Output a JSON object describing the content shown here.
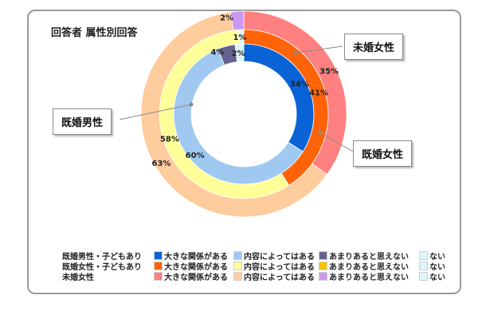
{
  "chart_data": {
    "type": "donut",
    "title": "回答者 属性別回答",
    "categories": [
      "大きな関係がある",
      "内容によってはある",
      "あまりあると思えない",
      "ない"
    ],
    "series": [
      {
        "name": "既婚男性・子どもあり",
        "values": [
          34,
          60,
          4,
          2
        ],
        "labels": [
          "34%",
          "60%",
          "4%",
          "2%"
        ],
        "colors": [
          "#0a63d6",
          "#9fc9f1",
          "#64628f",
          "#ddf7f8"
        ]
      },
      {
        "name": "既婚女性・子どもあり",
        "values": [
          41,
          58,
          0,
          1
        ],
        "labels": [
          "41%",
          "58%",
          "",
          "1%"
        ],
        "colors": [
          "#ff6308",
          "#ffff99",
          "#f5c400",
          "#ddf7f8"
        ]
      },
      {
        "name": "未婚女性",
        "values": [
          35,
          63,
          2,
          0
        ],
        "labels": [
          "35%",
          "63%",
          "2%",
          ""
        ],
        "colors": [
          "#ff8080",
          "#ffcc9e",
          "#cc99f0",
          "#ddf7f8"
        ]
      }
    ],
    "callouts": [
      "未婚女性",
      "既婚女性",
      "既婚男性"
    ],
    "legend_position": "bottom"
  },
  "callouts": {
    "mikon_josei": "未婚女性",
    "kikon_josei": "既婚女性",
    "kikon_dansei": "既婚男性"
  },
  "legend": {
    "rows": [
      {
        "group": "既婚男性・子どもあり",
        "items": [
          "大きな関係がある",
          "内容によってはある",
          "あまりあると思えない",
          "ない"
        ],
        "colors": [
          "#0a63d6",
          "#9fc9f1",
          "#64628f",
          "#ddf7f8"
        ]
      },
      {
        "group": "既婚女性・子どもあり",
        "items": [
          "大きな関係がある",
          "内容によってはある",
          "あまりあると思えない",
          "ない"
        ],
        "colors": [
          "#ff6308",
          "#ffff99",
          "#f5c400",
          "#ddf7f8"
        ]
      },
      {
        "group": "未婚女性",
        "items": [
          "大きな関係がある",
          "内容によってはある",
          "あまりあると思えない",
          "ない"
        ],
        "colors": [
          "#ff8080",
          "#ffcc9e",
          "#cc99f0",
          "#ddf7f8"
        ]
      }
    ]
  }
}
